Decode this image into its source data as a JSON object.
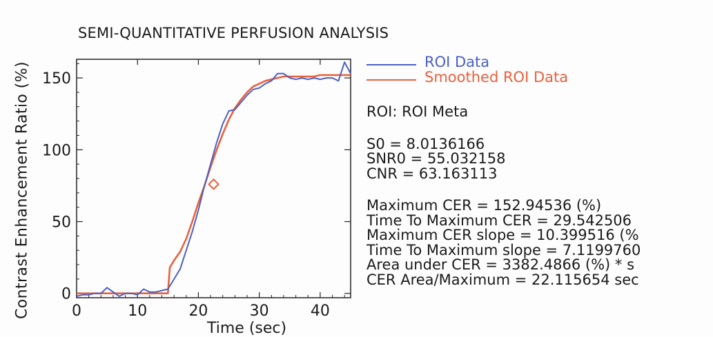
{
  "chart_data": {
    "type": "line",
    "title": "SEMI-QUANTITATIVE PERFUSION ANALYSIS",
    "xlabel": "Time (sec)",
    "ylabel": "Contrast Enhancement Ratio (%)",
    "xlim": [
      0,
      45
    ],
    "ylim": [
      -3,
      163
    ],
    "xticks": [
      0,
      10,
      20,
      30,
      40
    ],
    "yticks": [
      0,
      50,
      100,
      150
    ],
    "grid": false,
    "legend_position": "right-top",
    "series": [
      {
        "name": "ROI Data",
        "color": "#4a5fc4",
        "x": [
          0,
          1,
          2,
          3,
          4,
          5,
          6,
          7,
          8,
          9,
          10,
          11,
          12,
          13,
          14,
          15,
          16,
          17,
          18,
          19,
          20,
          21,
          22,
          23,
          24,
          25,
          26,
          27,
          28,
          29,
          30,
          31,
          32,
          33,
          34,
          35,
          36,
          37,
          38,
          39,
          40,
          41,
          42,
          43,
          44,
          45
        ],
        "y": [
          -2,
          -1,
          -1,
          0,
          0,
          4,
          1,
          -2,
          0,
          0,
          -1,
          3,
          1,
          1,
          2,
          3,
          10,
          17,
          30,
          43,
          58,
          75,
          90,
          105,
          118,
          127,
          128,
          133,
          138,
          142,
          143,
          146,
          148,
          153,
          153,
          150,
          149,
          150,
          149,
          150,
          149,
          150,
          150,
          148,
          161,
          153
        ]
      },
      {
        "name": "Smoothed ROI Data",
        "color": "#e8603c",
        "x": [
          0,
          1,
          2,
          3,
          4,
          5,
          6,
          7,
          8,
          9,
          10,
          11,
          12,
          13,
          14,
          15,
          15.3,
          16,
          17,
          18,
          19,
          20,
          21,
          22,
          23,
          24,
          25,
          26,
          27,
          28,
          29,
          30,
          31,
          32,
          33,
          34,
          35,
          36,
          37,
          38,
          39,
          40,
          41,
          42,
          43,
          44,
          45
        ],
        "y": [
          0,
          0,
          0,
          0,
          0,
          0,
          0,
          0,
          0,
          0,
          0,
          0,
          0,
          0,
          0,
          0,
          18,
          23,
          29,
          38,
          50,
          63,
          75,
          88,
          100,
          111,
          121,
          129,
          135,
          140,
          144,
          146,
          148,
          149,
          150,
          151,
          151,
          151,
          151,
          151,
          151,
          152,
          152,
          152,
          152,
          152,
          152
        ]
      }
    ],
    "markers": [
      {
        "x": 22.5,
        "y": 76,
        "shape": "diamond",
        "color": "#e8603c"
      }
    ]
  },
  "axis_color": "#222222",
  "stats": {
    "roi_line": "ROI: ROI Meta",
    "s0_line": "S0 = 8.0136166",
    "snr0_line": "SNR0 = 55.032158",
    "cnr_line": "CNR = 63.163113",
    "max_cer_line": "Maximum CER = 152.94536 (%)",
    "time_to_max_cer_line": "Time To Maximum CER = 29.542506",
    "max_cer_slope_line": "Maximum CER slope = 10.399516 (%",
    "time_to_max_slope_line": "Time To Maximum slope = 7.1199760",
    "area_under_cer_line": "Area under CER = 3382.4866 (%) * s",
    "cer_area_max_line": "CER Area/Maximum = 22.115654 sec"
  }
}
